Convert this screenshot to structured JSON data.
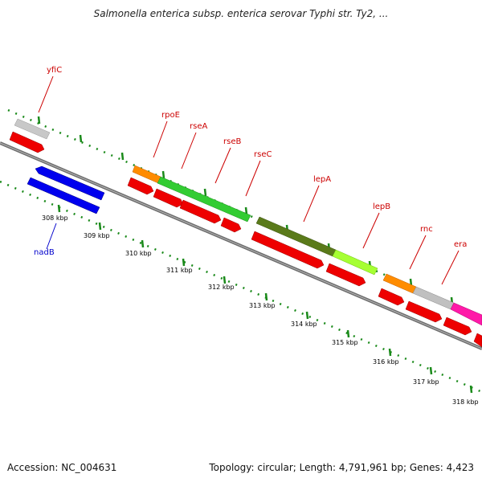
{
  "title": "Salmonella enterica subsp. enterica serovar Typhi str. Ty2, ...",
  "footer": {
    "accession": "Accession: NC_004631",
    "topology": "Topology: circular; Length: 4,791,961 bp; Genes: 4,423"
  },
  "colors": {
    "backbone": "#7a7a7a",
    "gc_ticks": "#1a8a1a",
    "label_red": "#cc0000",
    "label_blue": "#0000cc",
    "cds_red": "#ee0000",
    "nadB": "#0000ee"
  },
  "ticks": [
    "308 kbp",
    "309 kbp",
    "310 kbp",
    "311 kbp",
    "312 kbp",
    "313 kbp",
    "314 kbp",
    "315 kbp",
    "316 kbp",
    "317 kbp",
    "318 kbp"
  ],
  "genes": [
    {
      "name": "yfiC",
      "color": "#cc0000"
    },
    {
      "name": "nadB",
      "color": "#0000cc"
    },
    {
      "name": "rpoE",
      "color": "#cc0000"
    },
    {
      "name": "rseA",
      "color": "#cc0000"
    },
    {
      "name": "rseB",
      "color": "#cc0000"
    },
    {
      "name": "rseC",
      "color": "#cc0000"
    },
    {
      "name": "lepA",
      "color": "#cc0000"
    },
    {
      "name": "lepB",
      "color": "#cc0000"
    },
    {
      "name": "rnc",
      "color": "#cc0000"
    },
    {
      "name": "era",
      "color": "#cc0000"
    }
  ]
}
